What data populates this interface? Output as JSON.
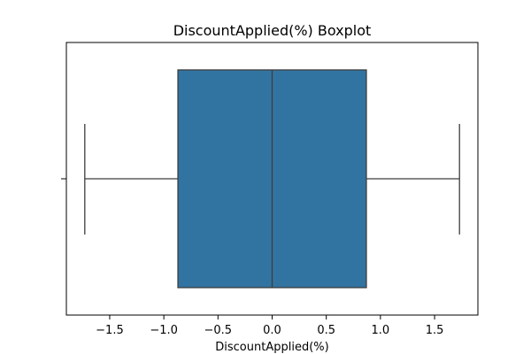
{
  "chart_data": {
    "type": "boxplot",
    "title": "DiscountApplied(%) Boxplot",
    "xlabel": "DiscountApplied(%)",
    "ylabel": "",
    "orientation": "horizontal",
    "xlim": [
      -1.9,
      1.9
    ],
    "x_ticks": [
      -1.5,
      -1.0,
      -0.5,
      0.0,
      0.5,
      1.0,
      1.5
    ],
    "x_tick_labels": [
      "−1.5",
      "−1.0",
      "−0.5",
      "0.0",
      "0.5",
      "1.0",
      "1.5"
    ],
    "box": {
      "whisker_low": -1.73,
      "q1": -0.87,
      "median": 0.0,
      "q3": 0.87,
      "whisker_high": 1.73
    },
    "box_color": "#3274a1",
    "line_color": "#3d3d3d",
    "grid": false,
    "legend": "none"
  }
}
